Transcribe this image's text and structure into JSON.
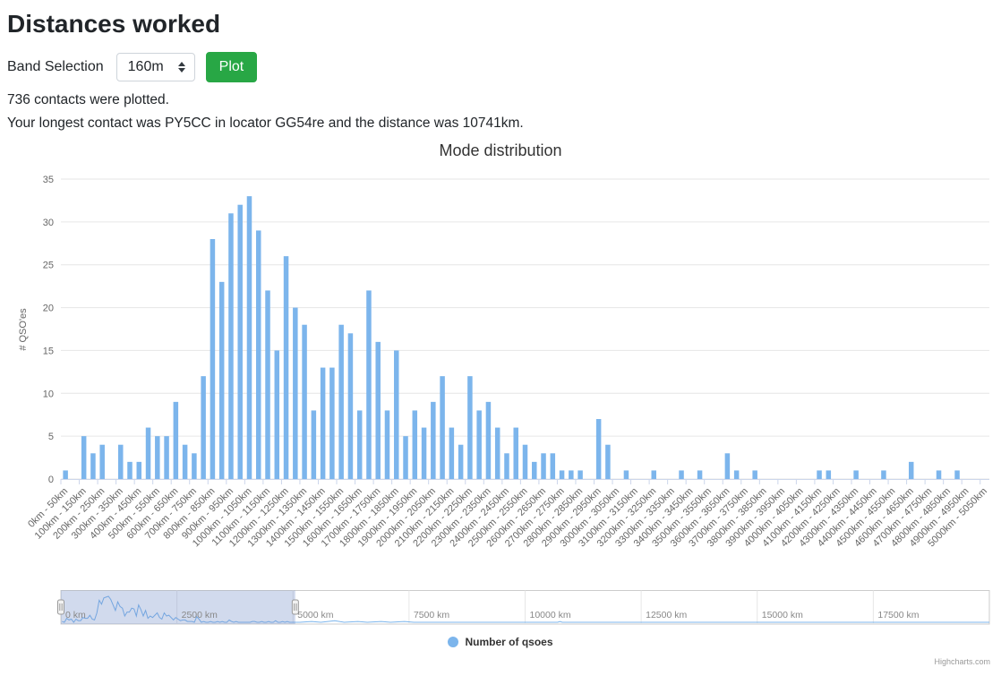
{
  "header": {
    "title": "Distances worked"
  },
  "controls": {
    "band_label": "Band Selection",
    "band_value": "160m",
    "plot_button": "Plot"
  },
  "status": {
    "contacts_line": "736 contacts were plotted.",
    "longest_line": "Your longest contact was PY5CC in locator GG54re and the distance was 10741km."
  },
  "chart_data": {
    "type": "bar",
    "title": "Mode distribution",
    "ylabel": "# QSO'es",
    "legend": "Number of qsoes",
    "credits": "Highcharts.com",
    "ylim": [
      0,
      35
    ],
    "yticks": [
      0,
      5,
      10,
      15,
      20,
      25,
      30,
      35
    ],
    "bucket_size_km": 50,
    "grid": true,
    "legend_position": "bottom-center",
    "x_tick_labels": [
      "0km - 50km",
      "100km - 150km",
      "200km - 250km",
      "300km - 350km",
      "400km - 450km",
      "500km - 550km",
      "600km - 650km",
      "700km - 750km",
      "800km - 850km",
      "900km - 950km",
      "1000km - 1050km",
      "1100km - 1150km",
      "1200km - 1250km",
      "1300km - 1350km",
      "1400km - 1450km",
      "1500km - 1550km",
      "1600km - 1650km",
      "1700km - 1750km",
      "1800km - 1850km",
      "1900km - 1950km",
      "2000km - 2050km",
      "2100km - 2150km",
      "2200km - 2250km",
      "2300km - 2350km",
      "2400km - 2450km",
      "2500km - 2550km",
      "2600km - 2650km",
      "2700km - 2750km",
      "2800km - 2850km",
      "2900km - 2950km",
      "3000km - 3050km",
      "3100km - 3150km",
      "3200km - 3250km",
      "3300km - 3350km",
      "3400km - 3450km",
      "3500km - 3550km",
      "3600km - 3650km",
      "3700km - 3750km",
      "3800km - 3850km",
      "3900km - 3950km",
      "4000km - 4050km",
      "4100km - 4150km",
      "4200km - 4250km",
      "4300km - 4350km",
      "4400km - 4450km",
      "4500km - 4550km",
      "4600km - 4650km",
      "4700km - 4750km",
      "4800km - 4850km",
      "4900km - 4950km",
      "5000km - 5050km"
    ],
    "values": [
      1,
      0,
      5,
      3,
      4,
      0,
      4,
      2,
      2,
      6,
      5,
      5,
      9,
      4,
      3,
      12,
      28,
      23,
      31,
      32,
      33,
      29,
      22,
      15,
      26,
      20,
      18,
      8,
      13,
      13,
      18,
      17,
      8,
      22,
      16,
      8,
      15,
      5,
      8,
      6,
      9,
      12,
      6,
      4,
      12,
      8,
      9,
      6,
      3,
      6,
      4,
      2,
      3,
      3,
      1,
      1,
      1,
      0,
      7,
      4,
      0,
      1,
      0,
      0,
      1,
      0,
      0,
      1,
      0,
      1,
      0,
      0,
      3,
      1,
      0,
      1,
      0,
      0,
      0,
      0,
      0,
      0,
      1,
      1,
      0,
      0,
      1,
      0,
      0,
      1,
      0,
      0,
      2,
      0,
      0,
      1,
      0,
      1,
      0,
      0,
      0
    ],
    "colors": {
      "bar": "#7cb5ec",
      "grid": "#e6e6e6",
      "axis_line": "#ccd6eb",
      "label": "#666666",
      "title": "#333333",
      "button": "#28a745"
    },
    "navigator": {
      "range_km": [
        0,
        20000
      ],
      "selected_km": [
        0,
        5050
      ],
      "axis_ticks_km": [
        0,
        2500,
        5000,
        7500,
        10000,
        12500,
        15000,
        17500
      ],
      "axis_labels": [
        "0 km",
        "2500 km",
        "5000 km",
        "7500 km",
        "10000 km",
        "12500 km",
        "15000 km",
        "17500 km"
      ],
      "mask_color": "rgba(102,133,194,0.3)",
      "extra_points": [
        [
          5150,
          0
        ],
        [
          5400,
          1
        ],
        [
          5600,
          0
        ],
        [
          5900,
          2
        ],
        [
          6100,
          0
        ],
        [
          6400,
          1
        ],
        [
          6600,
          0
        ],
        [
          6900,
          1
        ],
        [
          7100,
          0
        ],
        [
          7400,
          1
        ],
        [
          7600,
          0
        ],
        [
          10700,
          0
        ],
        [
          10750,
          1
        ],
        [
          10800,
          0
        ],
        [
          20000,
          0
        ]
      ]
    }
  }
}
